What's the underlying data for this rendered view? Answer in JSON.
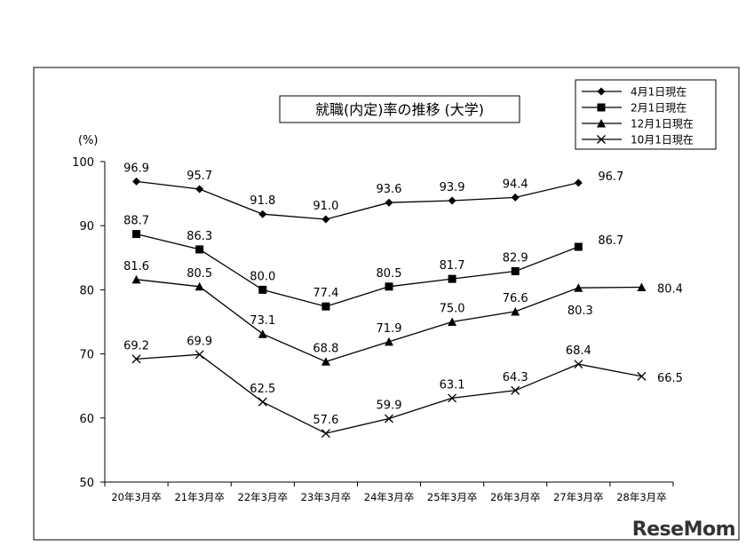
{
  "watermark": "ReseMom",
  "chart_data": {
    "type": "line",
    "title": "就職(内定)率の推移 (大学)",
    "ylabel": "(%)",
    "ylim": [
      50,
      100
    ],
    "yticks": [
      50,
      60,
      70,
      80,
      90,
      100
    ],
    "grid": false,
    "legend_position": "top-right",
    "categories": [
      "20年3月卒",
      "21年3月卒",
      "22年3月卒",
      "23年3月卒",
      "24年3月卒",
      "25年3月卒",
      "26年3月卒",
      "27年3月卒",
      "28年3月卒"
    ],
    "series": [
      {
        "name": "4月1日現在",
        "marker": "diamond",
        "values": [
          96.9,
          95.7,
          91.8,
          91.0,
          93.6,
          93.9,
          94.4,
          96.7,
          null
        ]
      },
      {
        "name": "2月1日現在",
        "marker": "square",
        "values": [
          88.7,
          86.3,
          80.0,
          77.4,
          80.5,
          81.7,
          82.9,
          86.7,
          null
        ]
      },
      {
        "name": "12月1日現在",
        "marker": "triangle",
        "values": [
          81.6,
          80.5,
          73.1,
          68.8,
          71.9,
          75.0,
          76.6,
          80.3,
          80.4
        ]
      },
      {
        "name": "10月1日現在",
        "marker": "x",
        "values": [
          69.2,
          69.9,
          62.5,
          57.6,
          59.9,
          63.1,
          64.3,
          68.4,
          66.5
        ]
      }
    ]
  }
}
